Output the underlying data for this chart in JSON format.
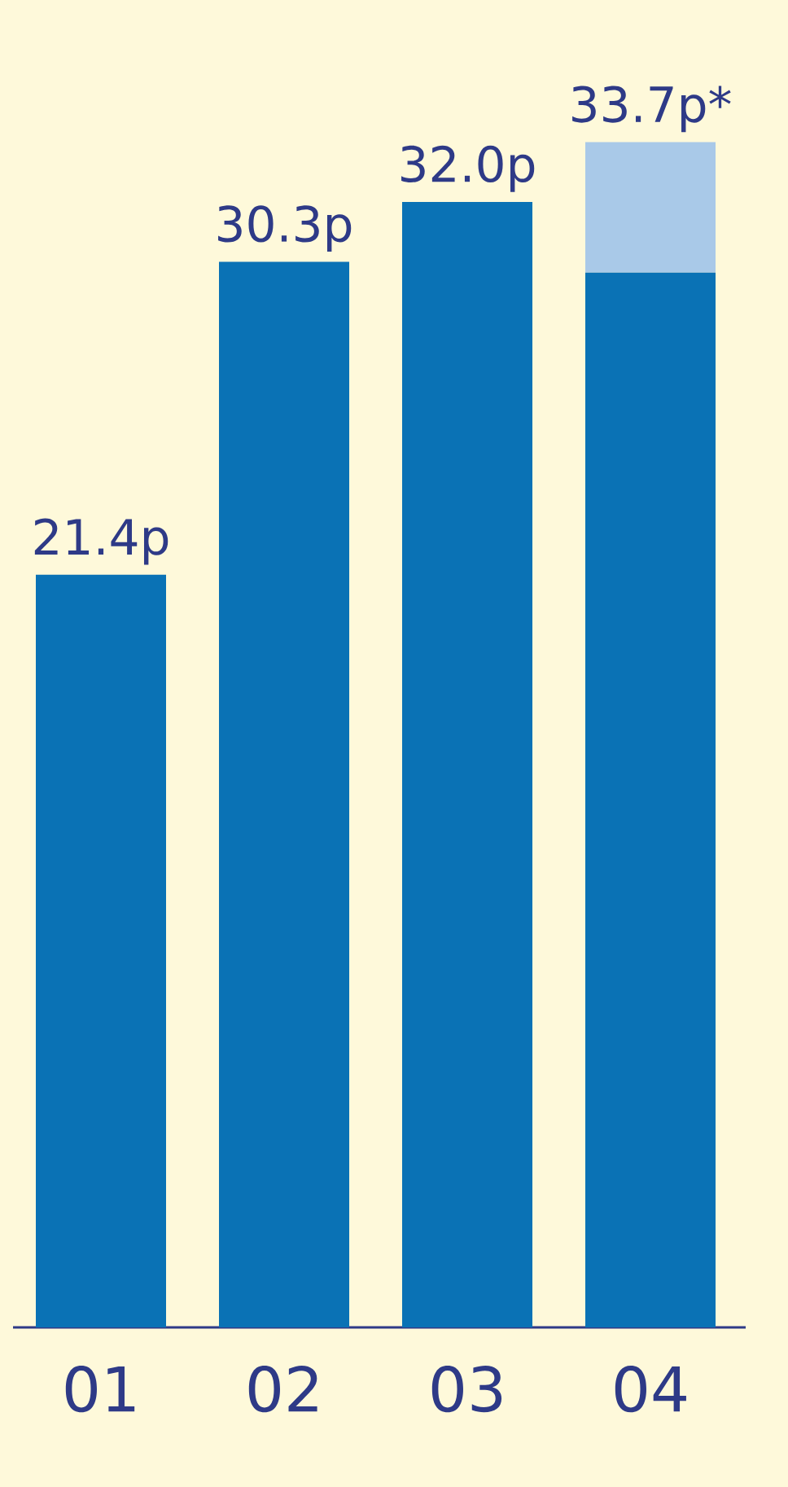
{
  "chart_data": {
    "type": "bar",
    "stacked": true,
    "categories": [
      "01",
      "02",
      "03",
      "04"
    ],
    "series": [
      {
        "color": "#0a72b5",
        "values": [
          21.4,
          30.3,
          32.0,
          30.0
        ],
        "value_labels": [
          "21.4p",
          "30.3p",
          "32.0p",
          null
        ]
      },
      {
        "color": "#a9c9e8",
        "values": [
          null,
          null,
          null,
          3.7
        ]
      }
    ],
    "totals": [
      null,
      null,
      null,
      "33.7p*"
    ]
  }
}
